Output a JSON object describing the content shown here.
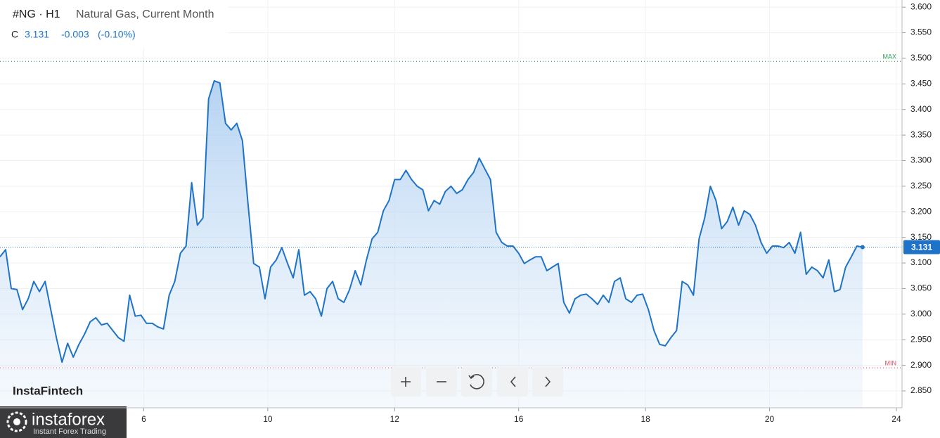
{
  "header": {
    "symbol": "#NG · H1",
    "ohlc_label": "C",
    "change": "-0.003",
    "change_pct": "(-0.10%)"
  },
  "chart_data": {
    "type": "line",
    "series": [
      {
        "name": "Natural Gas, Current Month",
        "color": "#1e73c8",
        "values": [
          3.112,
          3.126,
          3.05,
          3.048,
          3.009,
          3.03,
          3.064,
          3.044,
          3.064,
          3.009,
          2.954,
          2.906,
          2.943,
          2.916,
          2.941,
          2.961,
          2.985,
          2.993,
          2.979,
          2.982,
          2.968,
          2.954,
          2.947,
          3.037,
          2.996,
          2.998,
          2.982,
          2.982,
          2.975,
          2.971,
          3.037,
          3.064,
          3.119,
          3.133,
          3.257,
          3.174,
          3.188,
          3.421,
          3.456,
          3.452,
          3.373,
          3.36,
          3.373,
          3.339,
          3.215,
          3.099,
          3.092,
          3.03,
          3.092,
          3.106,
          3.13,
          3.099,
          3.071,
          3.126,
          3.037,
          3.044,
          3.03,
          2.996,
          3.05,
          3.064,
          3.03,
          3.023,
          3.048,
          3.085,
          3.057,
          3.106,
          3.147,
          3.16,
          3.202,
          3.222,
          3.263,
          3.263,
          3.281,
          3.263,
          3.25,
          3.243,
          3.202,
          3.222,
          3.215,
          3.24,
          3.25,
          3.236,
          3.243,
          3.263,
          3.277,
          3.305,
          3.284,
          3.263,
          3.16,
          3.14,
          3.133,
          3.133,
          3.119,
          3.099,
          3.106,
          3.112,
          3.112,
          3.085,
          3.092,
          3.099,
          3.023,
          3.002,
          3.03,
          3.037,
          3.039,
          3.03,
          3.019,
          3.037,
          3.023,
          3.064,
          3.071,
          3.03,
          3.023,
          3.037,
          3.039,
          3.009,
          2.968,
          2.941,
          2.938,
          2.954,
          2.968,
          3.064,
          3.057,
          3.037,
          3.147,
          3.188,
          3.25,
          3.222,
          3.167,
          3.181,
          3.209,
          3.174,
          3.202,
          3.195,
          3.174,
          3.14,
          3.119,
          3.133,
          3.133,
          3.13,
          3.14,
          3.119,
          3.16,
          3.078,
          3.092,
          3.085,
          3.071,
          3.106,
          3.044,
          3.048,
          3.092,
          3.112,
          3.133,
          3.131
        ]
      }
    ],
    "xlim": [
      0,
      160
    ],
    "xticks": [
      {
        "value": 25.5,
        "label": "6"
      },
      {
        "value": 47.5,
        "label": "10"
      },
      {
        "value": 70,
        "label": "12"
      },
      {
        "value": 92,
        "label": "16"
      },
      {
        "value": 114.5,
        "label": "18"
      },
      {
        "value": 136.5,
        "label": "20"
      },
      {
        "value": 159,
        "label": "24"
      }
    ],
    "ylim": [
      2.817,
      3.614
    ],
    "yticks": [
      {
        "value": 3.6,
        "label": "3.600"
      },
      {
        "value": 3.55,
        "label": "3.550"
      },
      {
        "value": 3.5,
        "label": "3.500"
      },
      {
        "value": 3.45,
        "label": "3.450"
      },
      {
        "value": 3.4,
        "label": "3.400"
      },
      {
        "value": 3.35,
        "label": "3.350"
      },
      {
        "value": 3.3,
        "label": "3.300"
      },
      {
        "value": 3.25,
        "label": "3.250"
      },
      {
        "value": 3.2,
        "label": "3.200"
      },
      {
        "value": 3.15,
        "label": "3.150"
      },
      {
        "value": 3.1,
        "label": "3.100"
      },
      {
        "value": 3.05,
        "label": "3.050"
      },
      {
        "value": 3.0,
        "label": "3.000"
      },
      {
        "value": 2.95,
        "label": "2.950"
      },
      {
        "value": 2.9,
        "label": "2.900"
      },
      {
        "value": 2.85,
        "label": "2.850"
      }
    ],
    "grid": true,
    "area": true,
    "max_line": {
      "value": 3.494,
      "label": "MAX",
      "color": "#2e9e5b"
    },
    "min_line": {
      "value": 2.895,
      "label": "MIN",
      "color": "#e0505a"
    }
  },
  "watermark": "InstaFintech",
  "logo": {
    "name": "instaforex",
    "tagline": "Instant Forex Trading"
  }
}
